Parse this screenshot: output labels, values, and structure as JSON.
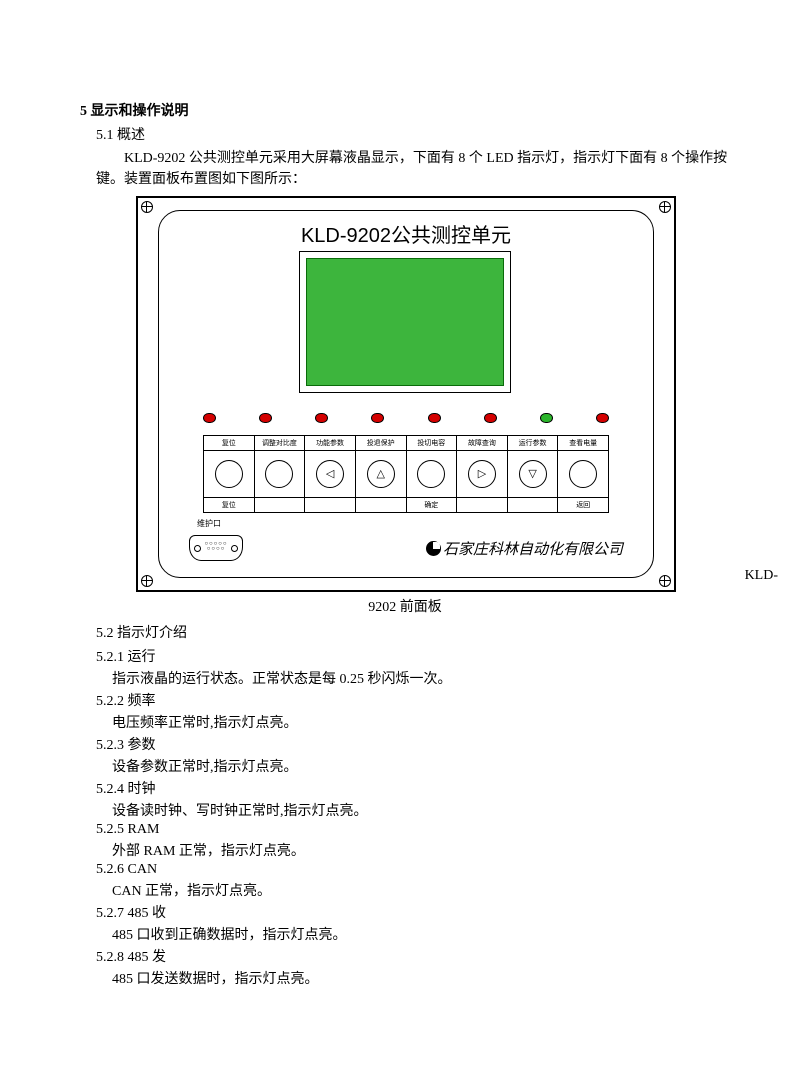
{
  "section": {
    "num_title": "5 显示和操作说明",
    "s51": "5.1 概述",
    "intro": "KLD-9202 公共测控单元采用大屏幕液晶显示，下面有 8 个 LED 指示灯，指示灯下面有 8 个操作按键。装置面板布置图如下图所示：",
    "caption_prefix": "KLD-",
    "caption": "9202 前面板",
    "s52": "5.2 指示灯介绍",
    "items": [
      {
        "h": "5.2.1  运行",
        "b": "指示液晶的运行状态。正常状态是每 0.25 秒闪烁一次。"
      },
      {
        "h": "5.2.2  频率",
        "b": "电压频率正常时,指示灯点亮。"
      },
      {
        "h": "5.2.3  参数",
        "b": "设备参数正常时,指示灯点亮。"
      },
      {
        "h": "5.2.4  时钟",
        "b": "设备读时钟、写时钟正常时,指示灯点亮。"
      },
      {
        "h": "5.2.5  RAM",
        "b": "外部 RAM 正常，指示灯点亮。"
      },
      {
        "h": "5.2.6  CAN",
        "b": "CAN 正常，指示灯点亮。"
      },
      {
        "h": "5.2.7  485 收",
        "b": "485 口收到正确数据时，指示灯点亮。"
      },
      {
        "h": "5.2.8  485 发",
        "b": "485 口发送数据时，指示灯点亮。"
      }
    ]
  },
  "panel": {
    "title": "KLD-9202公共测控单元",
    "screen_color": "#3db53d",
    "led_colors": [
      "#d40000",
      "#d40000",
      "#d40000",
      "#d40000",
      "#d40000",
      "#d40000",
      "#2bb52b",
      "#d40000"
    ],
    "keys": [
      {
        "top": "复位",
        "glyph": "",
        "bot": "复位"
      },
      {
        "top": "调整对比度",
        "glyph": "",
        "bot": ""
      },
      {
        "top": "功能参数",
        "glyph": "◁",
        "bot": ""
      },
      {
        "top": "投退保护",
        "glyph": "△",
        "bot": ""
      },
      {
        "top": "投切电容",
        "glyph": "",
        "bot": "确定"
      },
      {
        "top": "故障查询",
        "glyph": "▷",
        "bot": ""
      },
      {
        "top": "运行参数",
        "glyph": "▽",
        "bot": ""
      },
      {
        "top": "查看电量",
        "glyph": "",
        "bot": "返回"
      }
    ],
    "port_label": "维护口",
    "brand": "石家庄科林自动化有限公司"
  }
}
